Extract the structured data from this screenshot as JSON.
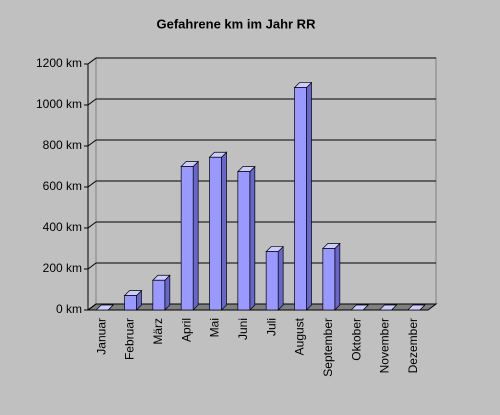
{
  "chart_data": {
    "type": "bar",
    "title": "Gefahrene km im Jahr RR",
    "categories": [
      "Januar",
      "Februar",
      "März",
      "April",
      "Mai",
      "Juni",
      "Juli",
      "August",
      "September",
      "Oktober",
      "November",
      "Dezember"
    ],
    "values": [
      0,
      70,
      145,
      700,
      745,
      675,
      285,
      1085,
      300,
      0,
      0,
      0
    ],
    "color": "#9999ff",
    "ylim": [
      0,
      1200
    ],
    "yticks": [
      {
        "value": 0,
        "label": "0 km"
      },
      {
        "value": 200,
        "label": "200 km"
      },
      {
        "value": 400,
        "label": "400 km"
      },
      {
        "value": 600,
        "label": "600 km"
      },
      {
        "value": 800,
        "label": "800 km"
      },
      {
        "value": 1000,
        "label": "1000 km"
      },
      {
        "value": 1200,
        "label": "1200 km"
      }
    ],
    "grid": true
  }
}
